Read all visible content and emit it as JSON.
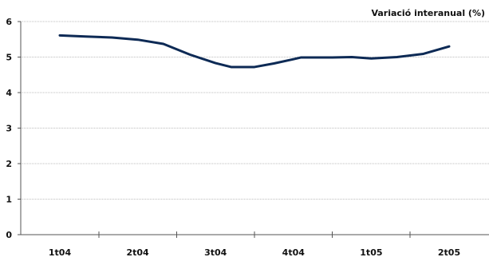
{
  "chart_data": {
    "type": "line",
    "title": "Variació interanual (%)",
    "categories": [
      "1t04",
      "2t04",
      "3t04",
      "4t04",
      "1t05",
      "2t05"
    ],
    "x_ticks": [
      0,
      1,
      2,
      3,
      4,
      5
    ],
    "ylim": [
      0,
      6
    ],
    "y_ticks": [
      0,
      1,
      2,
      3,
      4,
      5,
      6
    ],
    "grid": true,
    "series": [
      {
        "color": "#0d2a55",
        "points": [
          {
            "x": 0.0,
            "y": 5.61
          },
          {
            "x": 0.33,
            "y": 5.58
          },
          {
            "x": 0.67,
            "y": 5.55
          },
          {
            "x": 1.0,
            "y": 5.49
          },
          {
            "x": 1.33,
            "y": 5.37
          },
          {
            "x": 1.67,
            "y": 5.07
          },
          {
            "x": 2.0,
            "y": 4.83
          },
          {
            "x": 2.2,
            "y": 4.72
          },
          {
            "x": 2.5,
            "y": 4.72
          },
          {
            "x": 2.75,
            "y": 4.82
          },
          {
            "x": 3.0,
            "y": 4.94
          },
          {
            "x": 3.1,
            "y": 4.99
          },
          {
            "x": 3.5,
            "y": 4.99
          },
          {
            "x": 3.75,
            "y": 5.0
          },
          {
            "x": 4.0,
            "y": 4.96
          },
          {
            "x": 4.33,
            "y": 5.0
          },
          {
            "x": 4.67,
            "y": 5.09
          },
          {
            "x": 5.0,
            "y": 5.3
          }
        ]
      }
    ]
  }
}
